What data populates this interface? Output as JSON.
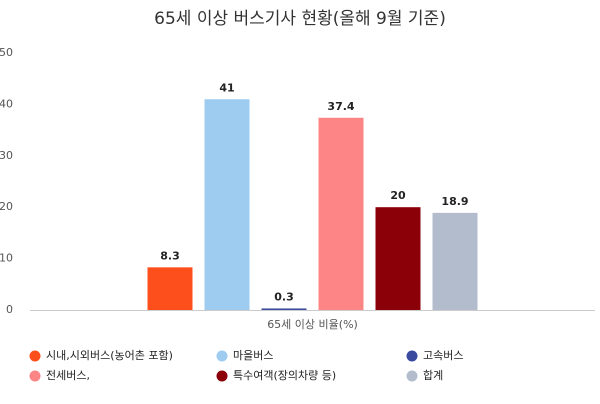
{
  "chart_data": {
    "type": "bar",
    "title": "65세 이상 버스기사 현황(올해 9월 기준)",
    "categories": [
      "65세 이상 비율(%)"
    ],
    "series": [
      {
        "name": "시내,시외버스(농어촌 포함)",
        "color": "#fc4f1c",
        "values": [
          8.3
        ]
      },
      {
        "name": "마을버스",
        "color": "#9ecbf0",
        "values": [
          41
        ]
      },
      {
        "name": "고속버스",
        "color": "#3b4a9e",
        "values": [
          0.3
        ]
      },
      {
        "name": "전세버스,",
        "color": "#fd8585",
        "values": [
          37.4
        ]
      },
      {
        "name": "특수여객(장의차량 등)",
        "color": "#8b0008",
        "values": [
          20
        ]
      },
      {
        "name": "합계",
        "color": "#b3bccd",
        "values": [
          18.9
        ]
      }
    ],
    "ylim": [
      0,
      50
    ],
    "yticks": [
      0,
      10,
      20,
      30,
      40,
      50
    ],
    "grid": false,
    "legend": "bottom"
  }
}
